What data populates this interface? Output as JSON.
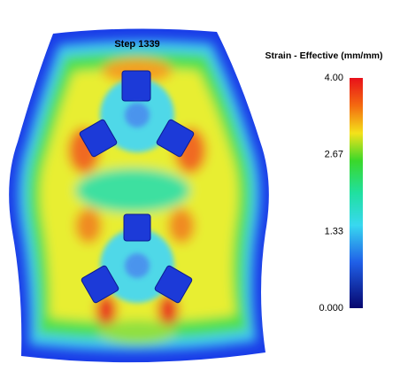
{
  "step_label": "Step 1339",
  "colorbar": {
    "title": "Strain - Effective (mm/mm)",
    "ticks": [
      {
        "value": 4,
        "label": "4.00"
      },
      {
        "value": 2.67,
        "label": "2.67"
      },
      {
        "value": 1.33,
        "label": "1.33"
      },
      {
        "value": 0,
        "label": "0.000"
      }
    ]
  }
}
